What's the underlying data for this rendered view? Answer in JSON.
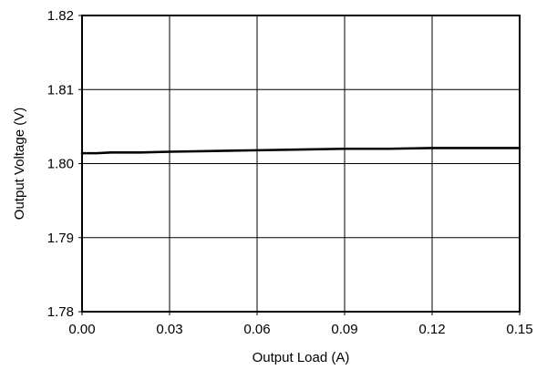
{
  "chart_data": {
    "type": "line",
    "xlabel": "Output Load (A)",
    "ylabel": "Output Voltage (V)",
    "xlim": [
      0,
      0.15
    ],
    "ylim": [
      1.78,
      1.82
    ],
    "xticks": [
      "0.00",
      "0.03",
      "0.06",
      "0.09",
      "0.12",
      "0.15"
    ],
    "yticks": [
      "1.78",
      "1.79",
      "1.80",
      "1.81",
      "1.82"
    ],
    "grid": true,
    "series": [
      {
        "color": "#000000",
        "x": [
          0.0,
          0.005,
          0.01,
          0.02,
          0.03,
          0.045,
          0.06,
          0.075,
          0.09,
          0.105,
          0.12,
          0.135,
          0.15
        ],
        "y": [
          1.8014,
          1.8014,
          1.8015,
          1.8015,
          1.8016,
          1.8017,
          1.8018,
          1.8019,
          1.802,
          1.802,
          1.8021,
          1.8021,
          1.8021
        ]
      }
    ]
  }
}
